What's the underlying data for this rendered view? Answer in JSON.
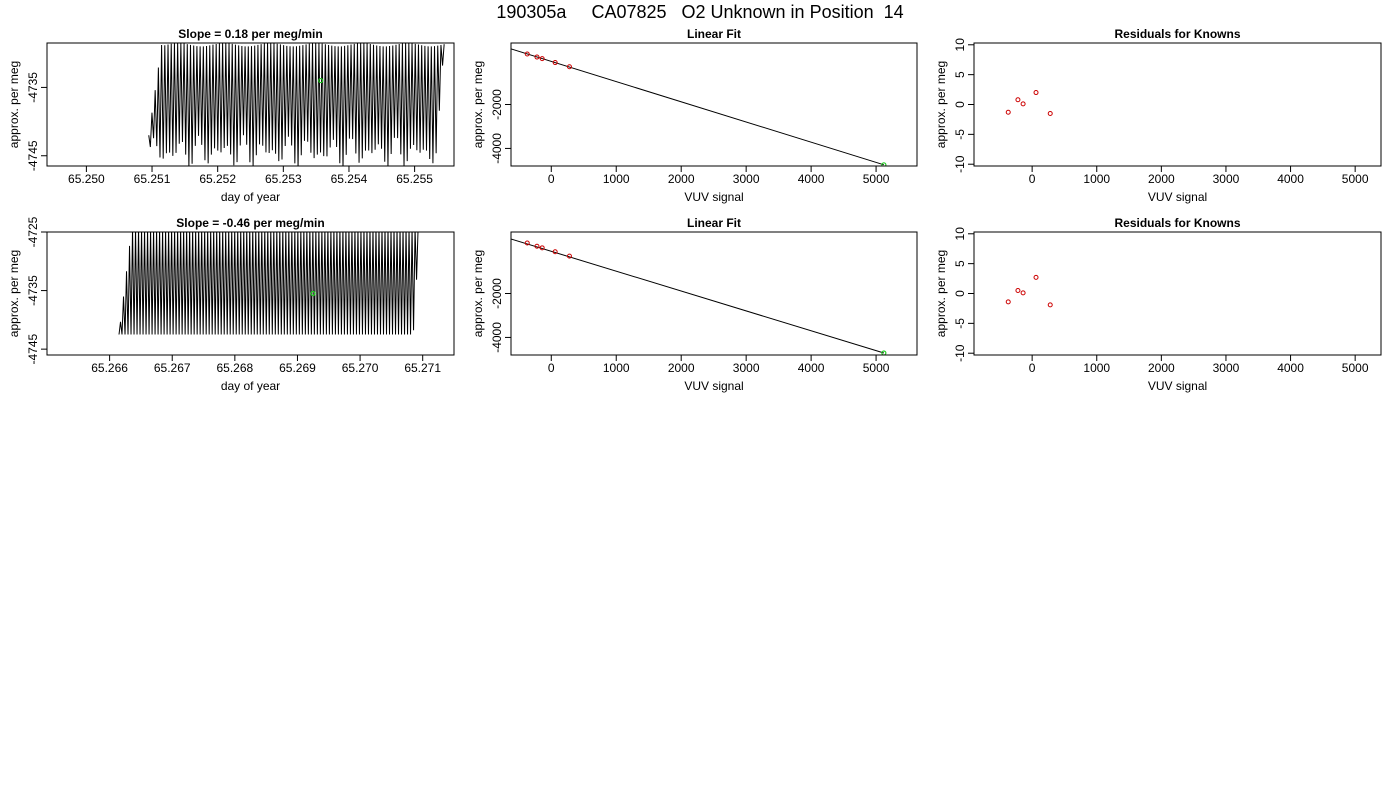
{
  "page_title": "190305a     CA07825   O2 Unknown in Position  14",
  "colors": {
    "trace": "#000000",
    "known_point": "#cc0000",
    "unknown_point": "#22cc22",
    "axis": "#000000"
  },
  "chart_data": [
    {
      "type": "line",
      "title": "Slope =  0.18  per meg/min",
      "xlabel": "day of year",
      "ylabel": "approx. per meg",
      "xlim": [
        65.2494,
        65.2556
      ],
      "ylim": [
        -4746.5,
        -4728.5
      ],
      "xticks": [
        "65.250",
        "65.251",
        "65.252",
        "65.253",
        "65.254",
        "65.255"
      ],
      "yticks": [
        "-4735",
        "-4745"
      ],
      "grid": false,
      "series": [
        {
          "style": "oscillating trace",
          "x_start": 65.25095,
          "x_end": 65.25545,
          "x_rise_start": 65.25095,
          "x_rise_end": 65.25115,
          "x_fall_start": 65.25535,
          "x_fall_end": 65.25545,
          "cycles": 92,
          "y_high_min": -4729.0,
          "y_high_max": -4728.5,
          "y_low_min": -4747.0,
          "y_low_max": -4742.0
        }
      ],
      "highlight_point": {
        "x": 65.25357,
        "y": -4734.0,
        "color": "unknown_point"
      }
    },
    {
      "type": "scatter",
      "title": "Linear Fit",
      "xlabel": "VUV signal",
      "ylabel": "approx. per meg",
      "xlim": [
        -620,
        5630
      ],
      "ylim": [
        -4800,
        800
      ],
      "xticks": [
        "0",
        "1000",
        "2000",
        "3000",
        "4000",
        "5000"
      ],
      "yticks": [
        "-2000",
        "-4000"
      ],
      "grid": false,
      "fit_line": {
        "x": [
          -640,
          5120
        ],
        "y": [
          550,
          -4745
        ]
      },
      "known_points": {
        "x": [
          -370,
          -220,
          -140,
          60,
          280
        ],
        "y": [
          300,
          160,
          90,
          -90,
          -280
        ]
      },
      "unknown_point": {
        "x": 5120,
        "y": -4745
      }
    },
    {
      "type": "scatter",
      "title": "Residuals for Knowns",
      "xlabel": "VUV signal",
      "ylabel": "approx. per meg",
      "xlim": [
        -900,
        5400
      ],
      "ylim": [
        -10.3,
        10.3
      ],
      "xticks": [
        "0",
        "1000",
        "2000",
        "3000",
        "4000",
        "5000"
      ],
      "yticks": [
        "-10",
        "-5",
        "0",
        "5",
        "10"
      ],
      "grid": false,
      "known_points": {
        "x": [
          -370,
          -220,
          -140,
          60,
          280
        ],
        "y": [
          -1.3,
          0.8,
          0.1,
          2.0,
          -1.5
        ]
      }
    },
    {
      "type": "line",
      "title": "Slope =  -0.46  per meg/min",
      "xlabel": "day of year",
      "ylabel": "approx. per meg",
      "xlim": [
        65.265,
        65.2715
      ],
      "ylim": [
        -4746.0,
        -4725.0
      ],
      "xticks": [
        "65.266",
        "65.267",
        "65.268",
        "65.269",
        "65.270",
        "65.271"
      ],
      "yticks": [
        "-4725",
        "-4735",
        "-4745"
      ],
      "grid": false,
      "series": [
        {
          "style": "oscillating trace",
          "x_start": 65.26615,
          "x_end": 65.27095,
          "x_rise_start": 65.27085,
          "x_rise_end": 65.27095,
          "x_fall_start": 65.26615,
          "x_fall_end": 65.26635,
          "cycles": 100,
          "y_high_min": -4726.0,
          "y_high_max": -4724.5,
          "y_low_min": -4746.5,
          "y_low_max": -4742.5
        }
      ],
      "highlight_point": {
        "x": 65.26925,
        "y": -4735.5,
        "color": "unknown_point"
      }
    },
    {
      "type": "scatter",
      "title": "Linear Fit",
      "xlabel": "VUV signal",
      "ylabel": "approx. per meg",
      "xlim": [
        -620,
        5630
      ],
      "ylim": [
        -4800,
        800
      ],
      "xticks": [
        "0",
        "1000",
        "2000",
        "3000",
        "4000",
        "5000"
      ],
      "yticks": [
        "-2000",
        "-4000"
      ],
      "grid": false,
      "fit_line": {
        "x": [
          -640,
          5120
        ],
        "y": [
          500,
          -4710
        ]
      },
      "known_points": {
        "x": [
          -370,
          -220,
          -140,
          60,
          280
        ],
        "y": [
          300,
          150,
          80,
          -100,
          -300
        ]
      },
      "unknown_point": {
        "x": 5120,
        "y": -4710
      }
    },
    {
      "type": "scatter",
      "title": "Residuals for Knowns",
      "xlabel": "VUV signal",
      "ylabel": "approx. per meg",
      "xlim": [
        -900,
        5400
      ],
      "ylim": [
        -10.3,
        10.3
      ],
      "xticks": [
        "0",
        "1000",
        "2000",
        "3000",
        "4000",
        "5000"
      ],
      "yticks": [
        "-10",
        "-5",
        "0",
        "5",
        "10"
      ],
      "grid": false,
      "known_points": {
        "x": [
          -370,
          -220,
          -140,
          60,
          280
        ],
        "y": [
          -1.4,
          0.5,
          0.1,
          2.7,
          -1.9
        ]
      }
    }
  ]
}
